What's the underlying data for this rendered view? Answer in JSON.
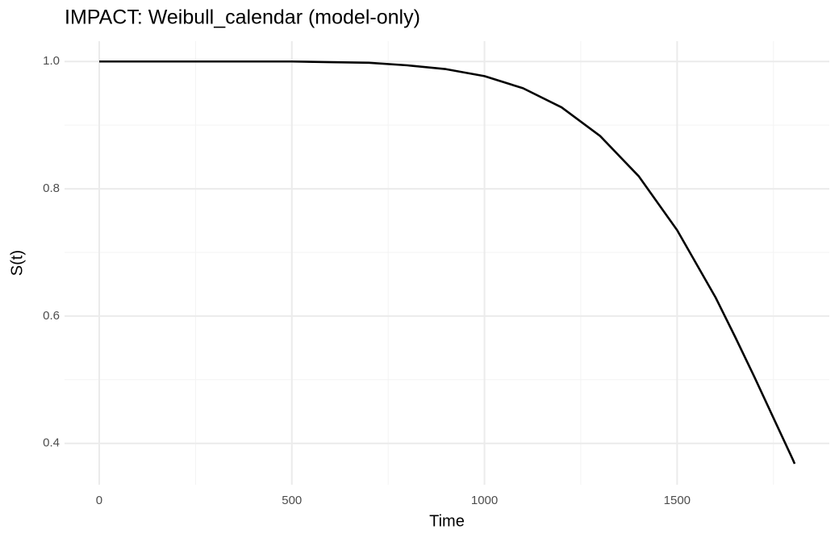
{
  "chart_data": {
    "type": "line",
    "title": "IMPACT: Weibull_calendar (model-only)",
    "x_label": "Time",
    "y_label": "S(t)",
    "x": [
      0,
      100,
      200,
      300,
      400,
      500,
      600,
      700,
      800,
      900,
      1000,
      1100,
      1200,
      1300,
      1400,
      1500,
      1600,
      1650,
      1700,
      1750,
      1800,
      1805
    ],
    "series": [
      {
        "name": "S(t)",
        "color": "#000000",
        "values": [
          1.0,
          1.0,
          1.0,
          1.0,
          1.0,
          1.0,
          0.999,
          0.998,
          0.994,
          0.988,
          0.977,
          0.958,
          0.928,
          0.883,
          0.82,
          0.735,
          0.629,
          0.568,
          0.505,
          0.44,
          0.375,
          0.368
        ]
      }
    ],
    "xlim": [
      -90,
      1895
    ],
    "ylim": [
      0.335,
      1.032
    ],
    "xticks": [
      0,
      500,
      1000,
      1500
    ],
    "yticks": [
      {
        "value": 0.4,
        "label": "0.4"
      },
      {
        "value": 0.6,
        "label": "0.6"
      },
      {
        "value": 0.8,
        "label": "0.8"
      },
      {
        "value": 1.0,
        "label": "1.0"
      }
    ],
    "xminor": [
      250,
      750,
      1250,
      1750
    ],
    "yminor": [
      0.5,
      0.7,
      0.9
    ],
    "grid": true
  }
}
